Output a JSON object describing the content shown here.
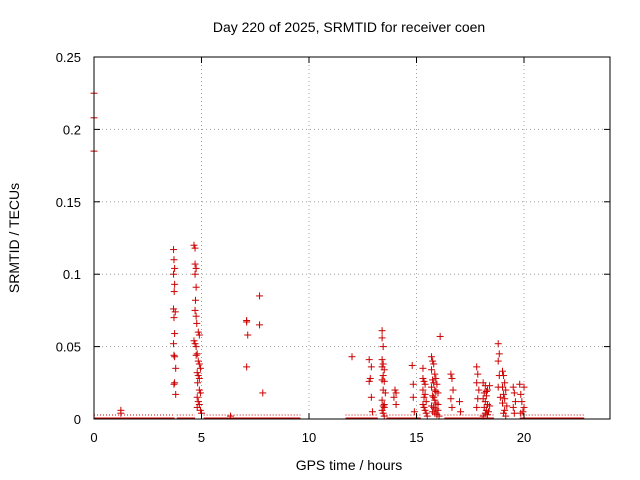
{
  "chart_data": {
    "type": "scatter",
    "title": "Day 220 of 2025, SRMTID for receiver coen",
    "xlabel": "GPS time / hours",
    "ylabel": "SRMTID / TECUs",
    "xlim": [
      0,
      24
    ],
    "ylim": [
      0,
      0.25
    ],
    "xticks": [
      0,
      5,
      10,
      15,
      20
    ],
    "xtick_labels": [
      "0",
      "5",
      "10",
      "15",
      "20"
    ],
    "yticks": [
      0,
      0.05,
      0.1,
      0.15,
      0.2,
      0.25
    ],
    "ytick_labels": [
      "0",
      "0.05",
      "0.1",
      "0.15",
      "0.2",
      "0.25"
    ],
    "grid": true,
    "marker": "+",
    "series_color": "#cc0000",
    "baseline_segments": [
      [
        0.0,
        3.75
      ],
      [
        3.85,
        4.7
      ],
      [
        5.1,
        9.6
      ],
      [
        11.7,
        13.2
      ],
      [
        13.6,
        15.2
      ],
      [
        16.3,
        18.6
      ],
      [
        19.8,
        22.8
      ]
    ],
    "series": [
      {
        "name": "SRMTID",
        "x": [
          0.0,
          0.0,
          0.0,
          1.25,
          1.25,
          3.7,
          3.72,
          3.75,
          3.7,
          3.75,
          3.73,
          3.7,
          3.78,
          3.72,
          3.75,
          3.7,
          3.72,
          3.75,
          3.8,
          3.75,
          3.72,
          3.8,
          4.65,
          4.7,
          4.7,
          4.75,
          4.7,
          4.75,
          4.72,
          4.7,
          4.75,
          4.78,
          4.65,
          4.7,
          4.75,
          4.8,
          4.85,
          4.9,
          4.95,
          4.8,
          4.85,
          4.9,
          4.82,
          4.9,
          4.95,
          4.8,
          4.85,
          4.9,
          4.8,
          4.95,
          5.0,
          4.85,
          4.9,
          4.75,
          6.35,
          7.1,
          7.1,
          7.15,
          7.1,
          7.7,
          7.7,
          7.85,
          12.0,
          12.8,
          12.9,
          12.85,
          12.8,
          12.9,
          12.95,
          13.4,
          13.4,
          13.45,
          13.4,
          13.45,
          13.4,
          13.5,
          13.45,
          13.4,
          13.5,
          13.45,
          13.55,
          13.4,
          13.5,
          13.45,
          13.5,
          13.4,
          13.45,
          13.5,
          14.0,
          14.05,
          13.95,
          14.05,
          14.8,
          14.85,
          14.85,
          14.9,
          15.3,
          15.3,
          15.35,
          15.4,
          15.3,
          15.4,
          15.35,
          15.45,
          15.3,
          15.35,
          15.4,
          15.45,
          15.5,
          15.7,
          15.75,
          15.8,
          15.7,
          15.85,
          15.9,
          15.75,
          15.8,
          15.95,
          15.7,
          15.85,
          15.9,
          16.0,
          15.75,
          15.8,
          15.85,
          15.9,
          16.0,
          15.7,
          15.8,
          15.9,
          16.0,
          15.75,
          15.85,
          15.95,
          16.05,
          16.1,
          16.6,
          16.65,
          16.7,
          16.6,
          16.65,
          17.0,
          17.05,
          17.8,
          17.85,
          17.8,
          17.9,
          17.85,
          17.8,
          18.1,
          18.2,
          18.3,
          18.15,
          18.25,
          18.1,
          18.2,
          18.3,
          18.4,
          18.15,
          18.25,
          18.35,
          18.2,
          18.3,
          18.1,
          18.4,
          18.25,
          18.8,
          18.85,
          18.8,
          18.85,
          18.8,
          18.9,
          19.0,
          19.05,
          19.1,
          19.0,
          19.15,
          19.05,
          19.1,
          19.0,
          19.2,
          19.1,
          19.05,
          19.15,
          19.5,
          19.55,
          19.6,
          19.5,
          19.55,
          19.8,
          20.0,
          19.85,
          19.9,
          20.0,
          19.95,
          19.85
        ],
        "y": [
          0.225,
          0.208,
          0.185,
          0.006,
          0.004,
          0.117,
          0.11,
          0.104,
          0.1,
          0.093,
          0.088,
          0.076,
          0.074,
          0.07,
          0.059,
          0.052,
          0.044,
          0.043,
          0.035,
          0.025,
          0.024,
          0.017,
          0.12,
          0.118,
          0.107,
          0.104,
          0.1,
          0.091,
          0.082,
          0.075,
          0.071,
          0.066,
          0.054,
          0.052,
          0.05,
          0.045,
          0.04,
          0.038,
          0.035,
          0.032,
          0.03,
          0.028,
          0.025,
          0.02,
          0.018,
          0.015,
          0.012,
          0.01,
          0.008,
          0.006,
          0.004,
          0.06,
          0.058,
          0.044,
          0.002,
          0.068,
          0.067,
          0.058,
          0.036,
          0.085,
          0.065,
          0.018,
          0.043,
          0.041,
          0.036,
          0.028,
          0.026,
          0.015,
          0.005,
          0.061,
          0.056,
          0.05,
          0.041,
          0.038,
          0.036,
          0.034,
          0.03,
          0.027,
          0.026,
          0.02,
          0.018,
          0.013,
          0.01,
          0.009,
          0.008,
          0.006,
          0.004,
          0.002,
          0.02,
          0.018,
          0.015,
          0.01,
          0.037,
          0.024,
          0.015,
          0.005,
          0.035,
          0.028,
          0.026,
          0.024,
          0.02,
          0.017,
          0.015,
          0.012,
          0.01,
          0.008,
          0.006,
          0.004,
          0.002,
          0.043,
          0.04,
          0.038,
          0.034,
          0.031,
          0.028,
          0.027,
          0.025,
          0.024,
          0.022,
          0.02,
          0.019,
          0.018,
          0.016,
          0.015,
          0.013,
          0.011,
          0.01,
          0.009,
          0.008,
          0.007,
          0.006,
          0.005,
          0.004,
          0.003,
          0.002,
          0.057,
          0.031,
          0.028,
          0.02,
          0.014,
          0.008,
          0.012,
          0.005,
          0.036,
          0.031,
          0.025,
          0.02,
          0.014,
          0.008,
          0.025,
          0.023,
          0.02,
          0.018,
          0.016,
          0.014,
          0.012,
          0.01,
          0.009,
          0.008,
          0.006,
          0.005,
          0.004,
          0.003,
          0.002,
          0.023,
          0.019,
          0.052,
          0.045,
          0.04,
          0.03,
          0.022,
          0.015,
          0.033,
          0.03,
          0.025,
          0.022,
          0.02,
          0.017,
          0.014,
          0.011,
          0.009,
          0.006,
          0.004,
          0.002,
          0.022,
          0.018,
          0.012,
          0.008,
          0.004,
          0.024,
          0.022,
          0.017,
          0.012,
          0.008,
          0.005,
          0.004
        ]
      }
    ]
  }
}
